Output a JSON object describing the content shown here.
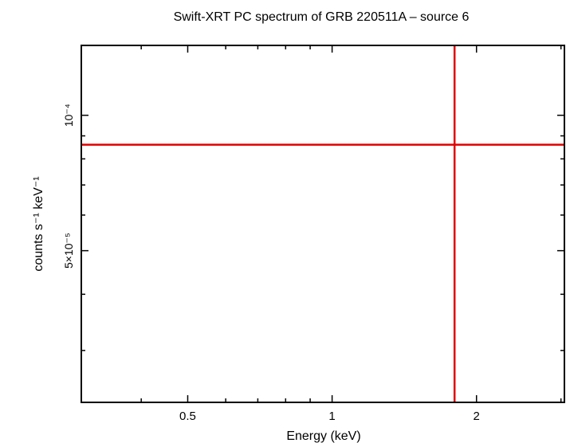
{
  "chart_data": {
    "type": "scatter",
    "title": "Swift-XRT PC spectrum of GRB 220511A – source 6",
    "xlabel": "Energy (keV)",
    "ylabel": "counts s⁻¹ keV⁻¹",
    "x_scale": "log",
    "y_scale": "log",
    "xlim": [
      0.3,
      3.05
    ],
    "ylim": [
      2.3e-05,
      0.000143
    ],
    "x_major_ticks": [
      {
        "value": 0.5,
        "label": "0.5"
      },
      {
        "value": 1,
        "label": "1"
      },
      {
        "value": 2,
        "label": "2"
      }
    ],
    "x_minor_ticks": [
      0.4,
      0.6,
      0.7,
      0.8,
      0.9,
      3
    ],
    "y_major_ticks": [
      {
        "value": 0.0001,
        "label": "10⁻⁴"
      },
      {
        "value": 5e-05,
        "label": "5×10⁻⁵"
      }
    ],
    "y_minor_ticks": [
      3e-05,
      4e-05,
      6e-05,
      7e-05,
      8e-05,
      9e-05
    ],
    "series": [
      {
        "color": "#e00000",
        "points": [
          {
            "x": 1.8,
            "y": 8.6e-05,
            "xerr": [
              0.3,
              3.05
            ],
            "yerr": [
              2.3e-05,
              0.000143
            ]
          }
        ]
      }
    ],
    "grid": false
  }
}
